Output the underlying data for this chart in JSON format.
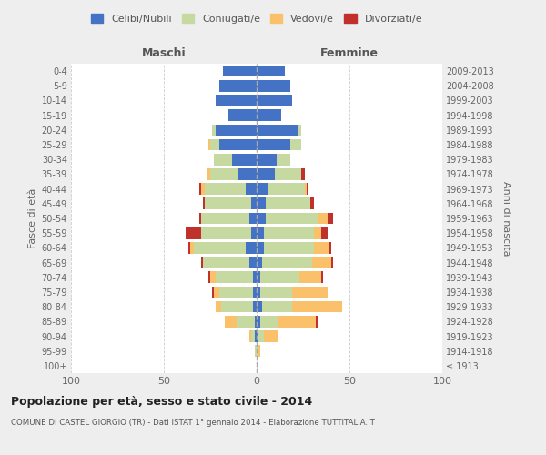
{
  "age_groups": [
    "100+",
    "95-99",
    "90-94",
    "85-89",
    "80-84",
    "75-79",
    "70-74",
    "65-69",
    "60-64",
    "55-59",
    "50-54",
    "45-49",
    "40-44",
    "35-39",
    "30-34",
    "25-29",
    "20-24",
    "15-19",
    "10-14",
    "5-9",
    "0-4"
  ],
  "birth_years": [
    "≤ 1913",
    "1914-1918",
    "1919-1923",
    "1924-1928",
    "1929-1933",
    "1934-1938",
    "1939-1943",
    "1944-1948",
    "1949-1953",
    "1954-1958",
    "1959-1963",
    "1964-1968",
    "1969-1973",
    "1974-1978",
    "1979-1983",
    "1984-1988",
    "1989-1993",
    "1994-1998",
    "1999-2003",
    "2004-2008",
    "2009-2013"
  ],
  "male_celibi": [
    0,
    0,
    1,
    1,
    2,
    2,
    2,
    4,
    6,
    3,
    4,
    3,
    6,
    10,
    13,
    20,
    22,
    15,
    22,
    20,
    18
  ],
  "male_coniugati": [
    0,
    1,
    2,
    10,
    17,
    18,
    20,
    25,
    28,
    27,
    26,
    25,
    22,
    15,
    10,
    5,
    2,
    0,
    0,
    0,
    0
  ],
  "male_vedovi": [
    0,
    0,
    1,
    6,
    3,
    3,
    3,
    0,
    2,
    0,
    0,
    0,
    2,
    2,
    0,
    1,
    0,
    0,
    0,
    0,
    0
  ],
  "male_divorziati": [
    0,
    0,
    0,
    0,
    0,
    1,
    1,
    1,
    1,
    8,
    1,
    1,
    1,
    0,
    0,
    0,
    0,
    0,
    0,
    0,
    0
  ],
  "female_celibi": [
    0,
    0,
    1,
    2,
    3,
    2,
    2,
    3,
    4,
    4,
    5,
    5,
    6,
    10,
    11,
    18,
    22,
    13,
    19,
    18,
    15
  ],
  "female_coniugati": [
    0,
    1,
    3,
    10,
    16,
    17,
    21,
    27,
    27,
    27,
    28,
    24,
    20,
    14,
    7,
    6,
    2,
    0,
    0,
    0,
    0
  ],
  "female_vedovi": [
    0,
    1,
    8,
    20,
    27,
    19,
    12,
    10,
    8,
    4,
    5,
    0,
    1,
    0,
    0,
    0,
    0,
    0,
    0,
    0,
    0
  ],
  "female_divorziati": [
    0,
    0,
    0,
    1,
    0,
    0,
    1,
    1,
    1,
    3,
    3,
    2,
    1,
    2,
    0,
    0,
    0,
    0,
    0,
    0,
    0
  ],
  "color_celibi": "#4472c4",
  "color_coniugati": "#c5d9a0",
  "color_vedovi": "#fac06a",
  "color_divorziati": "#c0312b",
  "title_main": "Popolazione per età, sesso e stato civile - 2014",
  "title_sub": "COMUNE DI CASTEL GIORGIO (TR) - Dati ISTAT 1° gennaio 2014 - Elaborazione TUTTITALIA.IT",
  "ylabel_left": "Fasce di età",
  "ylabel_right": "Anni di nascita",
  "xlabel_left": "Maschi",
  "xlabel_right": "Femmine",
  "xlim": 100,
  "bg_color": "#eeeeee",
  "plot_bg_color": "#ffffff"
}
